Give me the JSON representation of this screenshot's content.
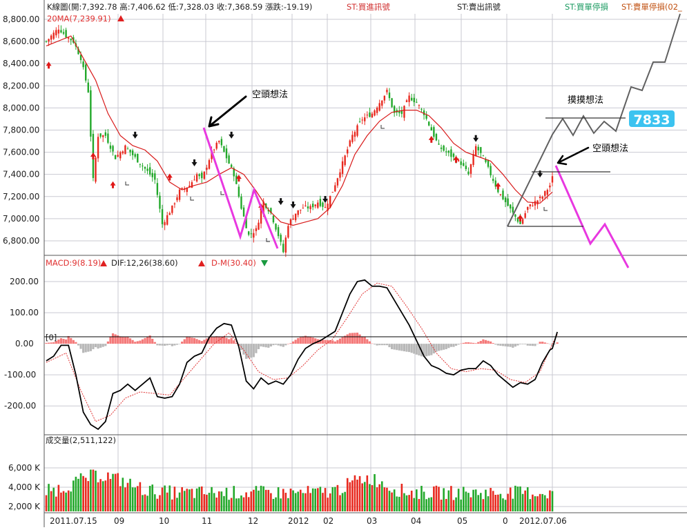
{
  "colors": {
    "up": "#e8281e",
    "down": "#22a82a",
    "ma": "#d81818",
    "pink": "#e838e0",
    "annot": "#606060",
    "dif": "#000000",
    "dem": "#e03030",
    "osc_pos": "#f47a7a",
    "osc_neg": "#b8b8b8",
    "grid": "#c9c9d2",
    "axis_text": "#303030",
    "badge_bg": "#3cc3f0",
    "badge_text": "#ffffff"
  },
  "header": {
    "k_label": "K線圖(開:7,392.78 高:7,406.62 低:7,328.03 收:7,368.59 漲跌:-19.19)",
    "st_buy": "ST:買進訊號",
    "st_sell": "ST:賣出訊號",
    "st_buy_stop": "ST:買單停損",
    "st_sell_stop": "ST:賣單停損(02_",
    "ma_label": "20MA(7,239.91)",
    "macd_label": "MACD:9(8.19)",
    "dif_label": "DIF:12,26(38.60)",
    "dm_label": "D-M(30.40)",
    "zero_label": "[0]",
    "vol_label": "成交量(2,511,122)"
  },
  "annotations": {
    "short_idea_1": "空頭想法",
    "short_idea_2": "空頭想法",
    "grope_idea": "摸摸想法",
    "target": "7833"
  },
  "chart_data": [
    {
      "type": "candlestick",
      "title": "K線圖",
      "ylim": [
        6700,
        8850
      ],
      "yticks": [
        "8,800.00",
        "8,600.00",
        "8,400.00",
        "8,200.00",
        "8,000.00",
        "7,800.00",
        "7,600.00",
        "7,400.00",
        "7,200.00",
        "7,000.00",
        "6,800.00"
      ],
      "ytick_values": [
        8800,
        8600,
        8400,
        8200,
        8000,
        7800,
        7600,
        7400,
        7200,
        7000,
        6800
      ],
      "x_labels": [
        "2011.07.15",
        "09",
        "10",
        "11",
        "12",
        "2012",
        "02",
        "03",
        "04",
        "05",
        "0",
        "2012.07.06"
      ],
      "anchors": [
        [
          0,
          8600
        ],
        [
          2,
          8650
        ],
        [
          5,
          8720
        ],
        [
          8,
          8650
        ],
        [
          11,
          8600
        ],
        [
          14,
          8450
        ],
        [
          17,
          8150
        ],
        [
          19,
          7350
        ],
        [
          21,
          7750
        ],
        [
          24,
          7750
        ],
        [
          28,
          7550
        ],
        [
          32,
          7650
        ],
        [
          36,
          7550
        ],
        [
          40,
          7450
        ],
        [
          44,
          7350
        ],
        [
          47,
          6950
        ],
        [
          51,
          7100
        ],
        [
          54,
          7250
        ],
        [
          58,
          7300
        ],
        [
          61,
          7400
        ],
        [
          63,
          7350
        ],
        [
          67,
          7600
        ],
        [
          70,
          7700
        ],
        [
          73,
          7550
        ],
        [
          76,
          7400
        ],
        [
          79,
          7100
        ],
        [
          82,
          6850
        ],
        [
          85,
          6900
        ],
        [
          88,
          7150
        ],
        [
          91,
          7050
        ],
        [
          94,
          6850
        ],
        [
          96,
          6700
        ],
        [
          98,
          6950
        ],
        [
          101,
          7050
        ],
        [
          104,
          7100
        ],
        [
          107,
          7100
        ],
        [
          110,
          7150
        ],
        [
          113,
          7100
        ],
        [
          116,
          7250
        ],
        [
          120,
          7500
        ],
        [
          124,
          7750
        ],
        [
          128,
          7900
        ],
        [
          132,
          7950
        ],
        [
          135,
          8050
        ],
        [
          138,
          8150
        ],
        [
          141,
          7950
        ],
        [
          144,
          7950
        ],
        [
          147,
          8100
        ],
        [
          150,
          8050
        ],
        [
          153,
          7950
        ],
        [
          156,
          7800
        ],
        [
          159,
          7650
        ],
        [
          162,
          7600
        ],
        [
          165,
          7550
        ],
        [
          168,
          7500
        ],
        [
          171,
          7400
        ],
        [
          174,
          7650
        ],
        [
          177,
          7550
        ],
        [
          180,
          7400
        ],
        [
          183,
          7250
        ],
        [
          186,
          7150
        ],
        [
          189,
          7050
        ],
        [
          192,
          6950
        ],
        [
          195,
          7100
        ],
        [
          198,
          7150
        ],
        [
          201,
          7200
        ],
        [
          204,
          7300
        ],
        [
          205,
          7370
        ]
      ],
      "ma20": [
        [
          0,
          8560
        ],
        [
          10,
          8650
        ],
        [
          15,
          8450
        ],
        [
          20,
          8250
        ],
        [
          25,
          7950
        ],
        [
          30,
          7750
        ],
        [
          35,
          7660
        ],
        [
          40,
          7620
        ],
        [
          45,
          7520
        ],
        [
          50,
          7330
        ],
        [
          55,
          7260
        ],
        [
          60,
          7300
        ],
        [
          65,
          7330
        ],
        [
          70,
          7400
        ],
        [
          75,
          7460
        ],
        [
          80,
          7400
        ],
        [
          85,
          7250
        ],
        [
          90,
          7080
        ],
        [
          95,
          6970
        ],
        [
          100,
          6940
        ],
        [
          105,
          6970
        ],
        [
          110,
          7000
        ],
        [
          115,
          7100
        ],
        [
          120,
          7300
        ],
        [
          125,
          7580
        ],
        [
          130,
          7750
        ],
        [
          135,
          7880
        ],
        [
          140,
          7960
        ],
        [
          145,
          7980
        ],
        [
          150,
          7980
        ],
        [
          155,
          7930
        ],
        [
          160,
          7820
        ],
        [
          165,
          7680
        ],
        [
          170,
          7600
        ],
        [
          175,
          7560
        ],
        [
          180,
          7520
        ],
        [
          185,
          7400
        ],
        [
          190,
          7260
        ],
        [
          195,
          7150
        ],
        [
          200,
          7140
        ],
        [
          205,
          7240
        ]
      ],
      "volume_ylim": [
        1500,
        8000
      ],
      "volume_yticks": [
        "6,000 K",
        "4,000 K",
        "2,000 K"
      ],
      "volume_ytick_values": [
        6000,
        4000,
        2000
      ],
      "macd_ylim": [
        -275,
        240
      ],
      "macd_yticks": [
        "200.00",
        "100.00",
        "0.00",
        "-100.00",
        "-200.00"
      ],
      "macd_ytick_values": [
        200,
        100,
        0,
        -100,
        -200
      ],
      "dif_anchors": [
        [
          0,
          -55
        ],
        [
          3,
          -40
        ],
        [
          6,
          -5
        ],
        [
          9,
          -5
        ],
        [
          12,
          -100
        ],
        [
          15,
          -220
        ],
        [
          18,
          -260
        ],
        [
          21,
          -275
        ],
        [
          24,
          -250
        ],
        [
          27,
          -160
        ],
        [
          30,
          -150
        ],
        [
          33,
          -130
        ],
        [
          36,
          -150
        ],
        [
          39,
          -130
        ],
        [
          42,
          -110
        ],
        [
          45,
          -170
        ],
        [
          48,
          -175
        ],
        [
          51,
          -170
        ],
        [
          54,
          -130
        ],
        [
          57,
          -60
        ],
        [
          60,
          -40
        ],
        [
          63,
          -30
        ],
        [
          66,
          20
        ],
        [
          69,
          50
        ],
        [
          72,
          65
        ],
        [
          75,
          60
        ],
        [
          78,
          -10
        ],
        [
          81,
          -120
        ],
        [
          84,
          -145
        ],
        [
          87,
          -110
        ],
        [
          90,
          -130
        ],
        [
          93,
          -120
        ],
        [
          96,
          -130
        ],
        [
          99,
          -100
        ],
        [
          102,
          -50
        ],
        [
          105,
          -15
        ],
        [
          108,
          0
        ],
        [
          111,
          10
        ],
        [
          114,
          25
        ],
        [
          117,
          40
        ],
        [
          120,
          100
        ],
        [
          123,
          160
        ],
        [
          126,
          200
        ],
        [
          129,
          205
        ],
        [
          132,
          185
        ],
        [
          135,
          185
        ],
        [
          138,
          180
        ],
        [
          141,
          140
        ],
        [
          144,
          100
        ],
        [
          147,
          60
        ],
        [
          150,
          10
        ],
        [
          153,
          -40
        ],
        [
          156,
          -70
        ],
        [
          159,
          -80
        ],
        [
          162,
          -95
        ],
        [
          165,
          -100
        ],
        [
          168,
          -85
        ],
        [
          171,
          -80
        ],
        [
          174,
          -80
        ],
        [
          177,
          -55
        ],
        [
          180,
          -70
        ],
        [
          183,
          -100
        ],
        [
          186,
          -120
        ],
        [
          189,
          -140
        ],
        [
          192,
          -125
        ],
        [
          195,
          -130
        ],
        [
          198,
          -115
        ],
        [
          201,
          -60
        ],
        [
          204,
          -20
        ],
        [
          205,
          -15
        ],
        [
          207,
          38
        ]
      ],
      "dem_anchors": [
        [
          0,
          -60
        ],
        [
          8,
          -30
        ],
        [
          14,
          -150
        ],
        [
          20,
          -250
        ],
        [
          26,
          -230
        ],
        [
          32,
          -175
        ],
        [
          38,
          -155
        ],
        [
          44,
          -160
        ],
        [
          50,
          -165
        ],
        [
          56,
          -110
        ],
        [
          62,
          -55
        ],
        [
          68,
          0
        ],
        [
          74,
          35
        ],
        [
          80,
          -20
        ],
        [
          86,
          -90
        ],
        [
          92,
          -115
        ],
        [
          98,
          -110
        ],
        [
          104,
          -70
        ],
        [
          110,
          -20
        ],
        [
          116,
          15
        ],
        [
          122,
          85
        ],
        [
          128,
          160
        ],
        [
          134,
          195
        ],
        [
          140,
          185
        ],
        [
          146,
          120
        ],
        [
          152,
          50
        ],
        [
          158,
          -30
        ],
        [
          164,
          -80
        ],
        [
          170,
          -90
        ],
        [
          176,
          -80
        ],
        [
          182,
          -85
        ],
        [
          188,
          -115
        ],
        [
          194,
          -125
        ],
        [
          200,
          -90
        ],
        [
          205,
          0
        ],
        [
          207,
          30
        ]
      ]
    }
  ]
}
